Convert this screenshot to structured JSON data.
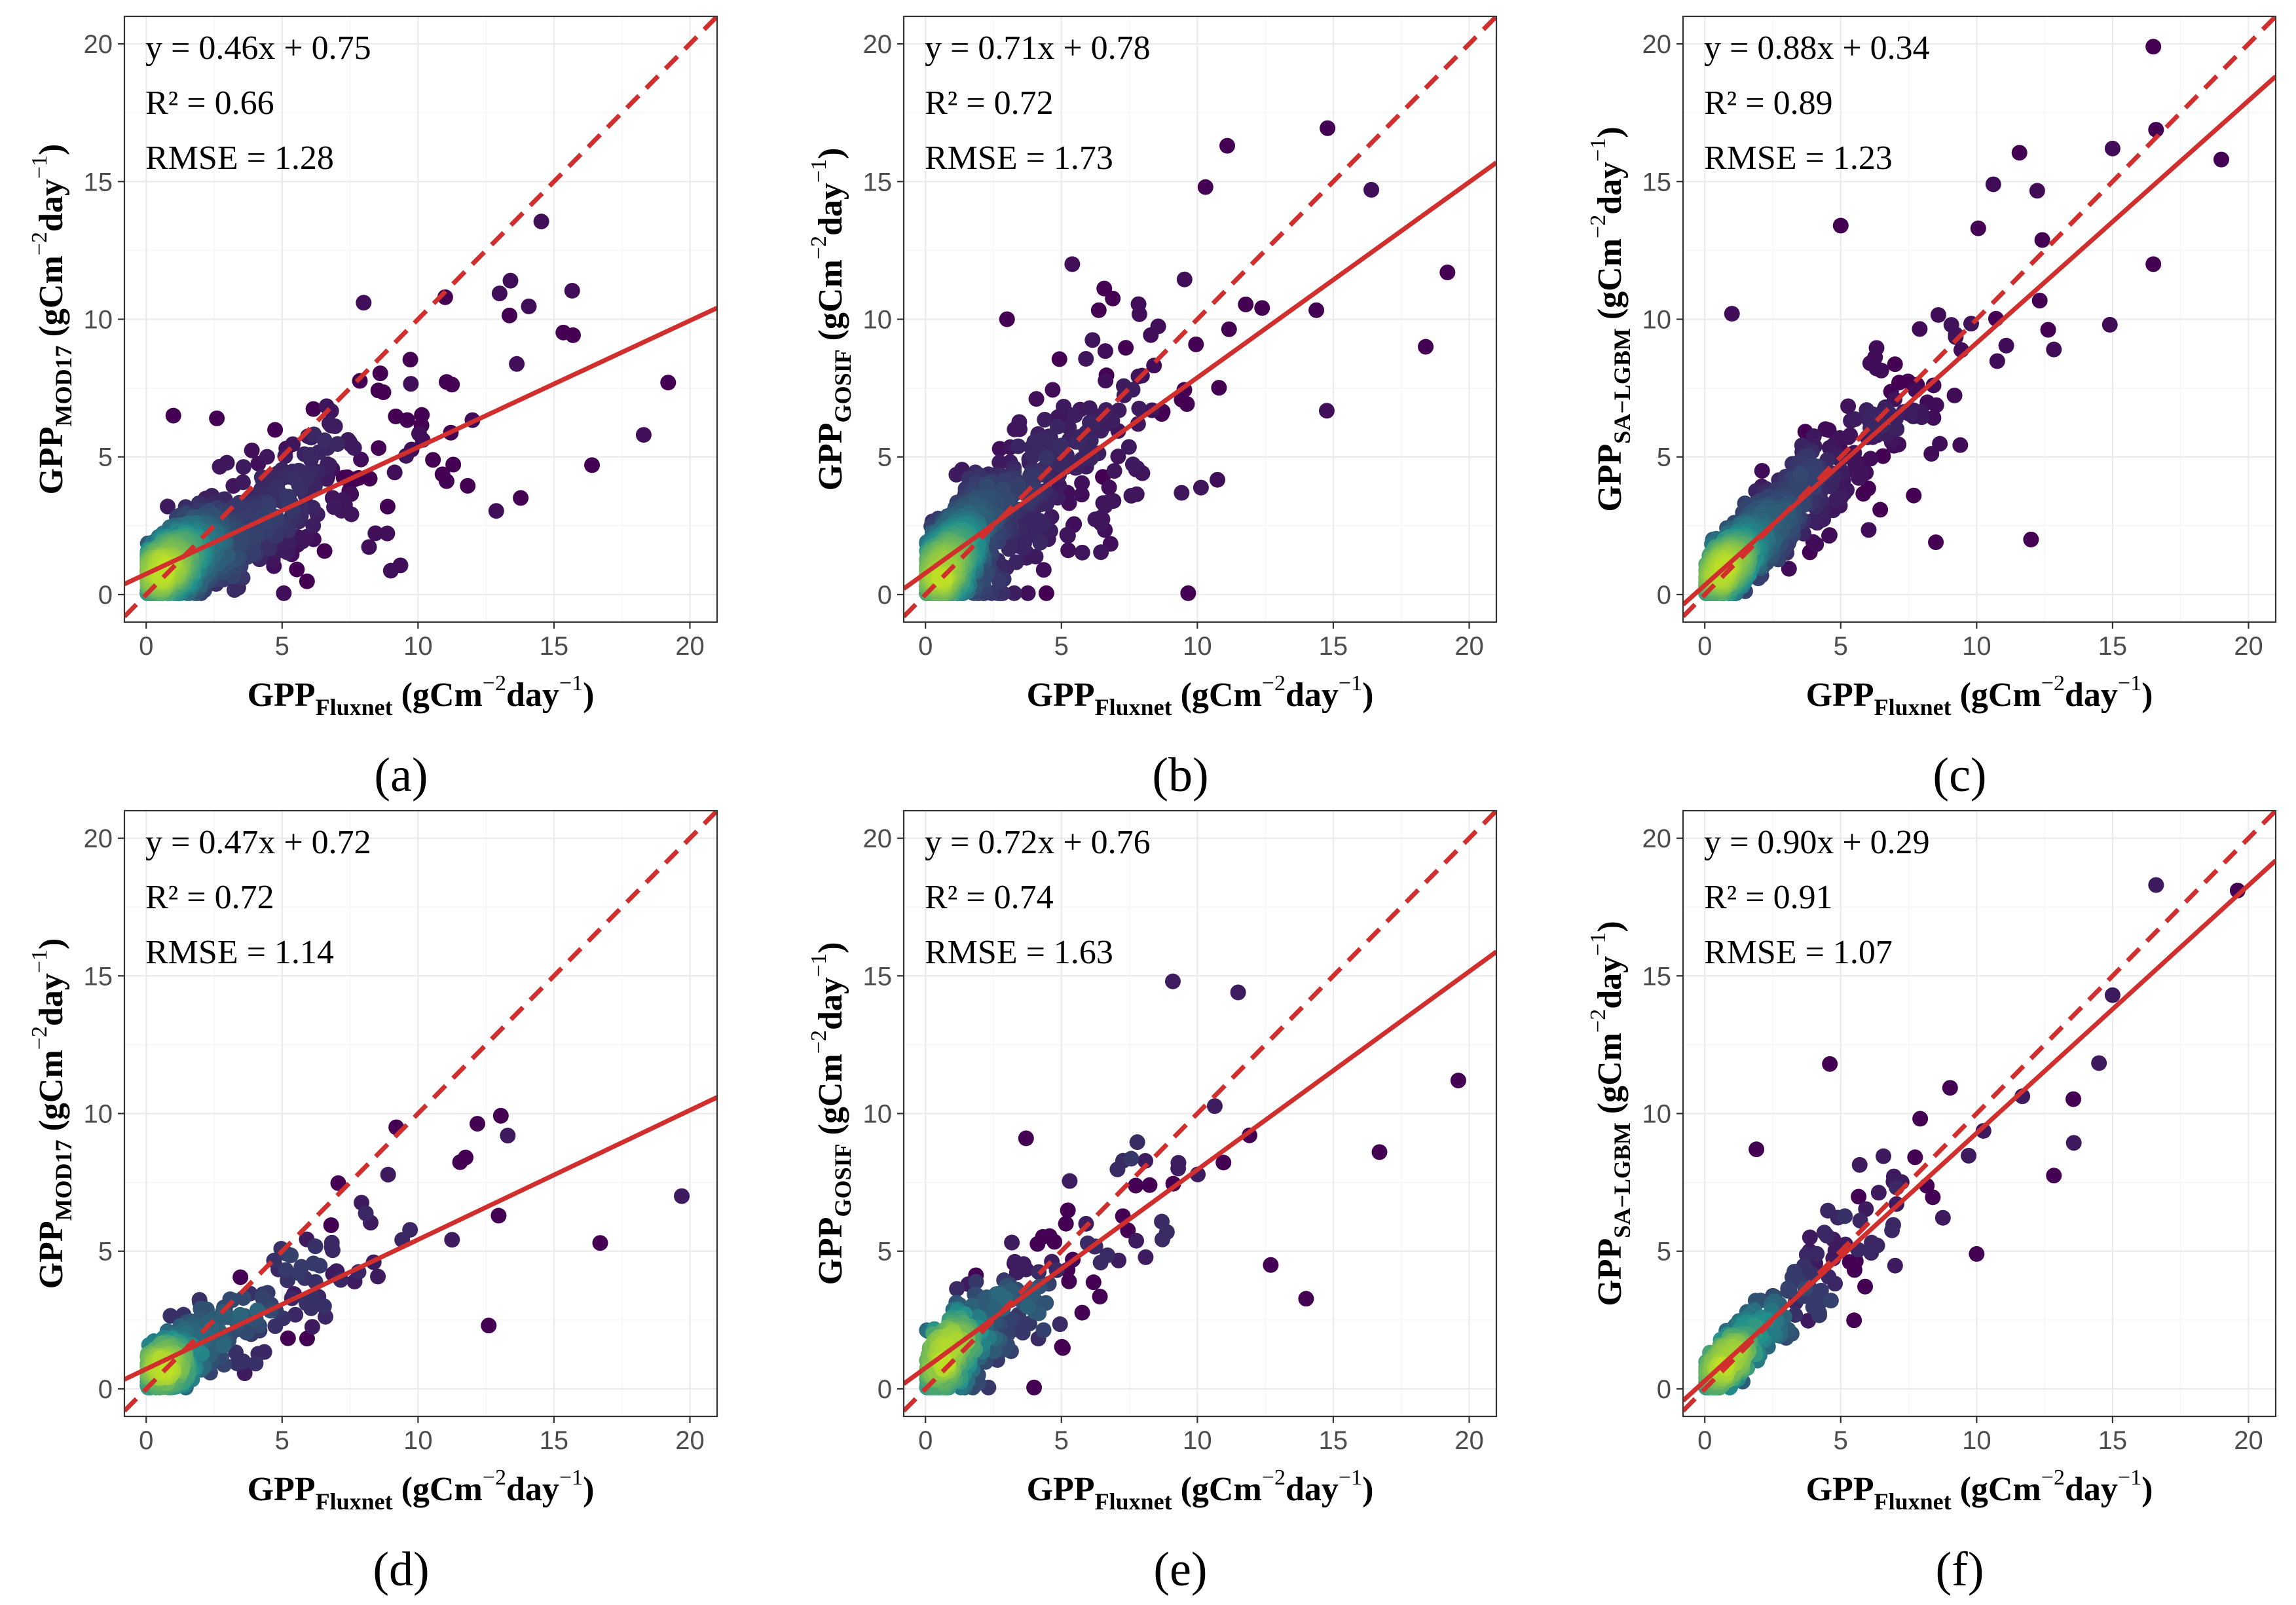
{
  "figure": {
    "line_color": "#d12e2e",
    "point_color_low": "#440154",
    "point_color_mid": "#21908c",
    "point_color_high": "#bddf26"
  },
  "chart_data": [
    {
      "id": "a",
      "type": "scatter",
      "panel_label": "(a)",
      "x_label": {
        "base": "GPP",
        "sub": "Fluxnet",
        "unit_a": " (gCm",
        "exp1": "−2",
        "unit_b": "day",
        "exp2": "−1",
        "unit_c": ")"
      },
      "y_label": {
        "base": "GPP",
        "sub": "MOD17",
        "unit_a": " (gCm",
        "exp1": "−2",
        "unit_b": "day",
        "exp2": "−1",
        "unit_c": ")"
      },
      "xlim": [
        -0.8,
        21
      ],
      "ylim": [
        -1,
        21
      ],
      "x_ticks": [
        0,
        5,
        10,
        15,
        20
      ],
      "y_ticks": [
        0,
        5,
        10,
        15,
        20
      ],
      "regression": {
        "slope": 0.46,
        "intercept": 0.75
      },
      "stats": {
        "equation": "y = 0.46x + 0.75",
        "r2": "R² = 0.66",
        "rmse": "RMSE = 1.28"
      },
      "sample": {
        "n": 1300,
        "seed": 11,
        "max_x": 19.2,
        "noise": 1.3,
        "outliers": [
          [
            19.2,
            7.7
          ],
          [
            16.4,
            4.7
          ],
          [
            18.3,
            5.8
          ],
          [
            13.4,
            11.4
          ],
          [
            11.0,
            10.8
          ],
          [
            8.0,
            10.6
          ],
          [
            2.6,
            6.4
          ],
          [
            1.0,
            6.5
          ]
        ]
      }
    },
    {
      "id": "b",
      "type": "scatter",
      "panel_label": "(b)",
      "x_label": {
        "base": "GPP",
        "sub": "Fluxnet",
        "unit_a": " (gCm",
        "exp1": "−2",
        "unit_b": "day",
        "exp2": "−1",
        "unit_c": ")"
      },
      "y_label": {
        "base": "GPP",
        "sub": "GOSIF",
        "unit_a": " (gCm",
        "exp1": "−2",
        "unit_b": "day",
        "exp2": "−1",
        "unit_c": ")"
      },
      "xlim": [
        -0.8,
        21
      ],
      "ylim": [
        -1,
        21
      ],
      "x_ticks": [
        0,
        5,
        10,
        15,
        20
      ],
      "y_ticks": [
        0,
        5,
        10,
        15,
        20
      ],
      "regression": {
        "slope": 0.71,
        "intercept": 0.78
      },
      "stats": {
        "equation": "y = 0.71x + 0.78",
        "r2": "R² = 0.72",
        "rmse": "RMSE = 1.73"
      },
      "sample": {
        "n": 1300,
        "seed": 23,
        "max_x": 19.2,
        "noise": 1.75,
        "outliers": [
          [
            11.1,
            16.3
          ],
          [
            10.3,
            14.8
          ],
          [
            16.4,
            14.7
          ],
          [
            19.2,
            11.7
          ],
          [
            18.4,
            9.0
          ],
          [
            5.4,
            12.0
          ],
          [
            3.0,
            10.0
          ]
        ]
      }
    },
    {
      "id": "c",
      "type": "scatter",
      "panel_label": "(c)",
      "x_label": {
        "base": "GPP",
        "sub": "Fluxnet",
        "unit_a": " (gCm",
        "exp1": "−2",
        "unit_b": "day",
        "exp2": "−1",
        "unit_c": ")"
      },
      "y_label": {
        "base": "GPP",
        "sub": "SA−LGBM",
        "unit_a": " (gCm",
        "exp1": "−2",
        "unit_b": "day",
        "exp2": "−1",
        "unit_c": ")"
      },
      "xlim": [
        -0.8,
        21
      ],
      "ylim": [
        -1,
        21
      ],
      "x_ticks": [
        0,
        5,
        10,
        15,
        20
      ],
      "y_ticks": [
        0,
        5,
        10,
        15,
        20
      ],
      "regression": {
        "slope": 0.88,
        "intercept": 0.34
      },
      "stats": {
        "equation": "y = 0.88x + 0.34",
        "r2": "R² = 0.89",
        "rmse": "RMSE = 1.23"
      },
      "sample": {
        "n": 1300,
        "seed": 37,
        "max_x": 19.0,
        "noise": 1.2,
        "outliers": [
          [
            16.5,
            19.9
          ],
          [
            19.0,
            15.8
          ],
          [
            15.0,
            16.2
          ],
          [
            16.5,
            12.0
          ],
          [
            12.0,
            2.0
          ],
          [
            1.0,
            10.2
          ],
          [
            5.0,
            13.4
          ],
          [
            8.5,
            1.9
          ],
          [
            14.9,
            9.8
          ]
        ]
      }
    },
    {
      "id": "d",
      "type": "scatter",
      "panel_label": "(d)",
      "x_label": {
        "base": "GPP",
        "sub": "Fluxnet",
        "unit_a": " (gCm",
        "exp1": "−2",
        "unit_b": "day",
        "exp2": "−1",
        "unit_c": ")"
      },
      "y_label": {
        "base": "GPP",
        "sub": "MOD17",
        "unit_a": " (gCm",
        "exp1": "−2",
        "unit_b": "day",
        "exp2": "−1",
        "unit_c": ")"
      },
      "xlim": [
        -0.8,
        21
      ],
      "ylim": [
        -1,
        21
      ],
      "x_ticks": [
        0,
        5,
        10,
        15,
        20
      ],
      "y_ticks": [
        0,
        5,
        10,
        15,
        20
      ],
      "regression": {
        "slope": 0.47,
        "intercept": 0.72
      },
      "stats": {
        "equation": "y = 0.47x + 0.72",
        "r2": "R² = 0.72",
        "rmse": "RMSE = 1.14"
      },
      "sample": {
        "n": 420,
        "seed": 41,
        "max_x": 14.5,
        "noise": 1.15,
        "outliers": [
          [
            19.7,
            7.0
          ],
          [
            16.7,
            5.3
          ],
          [
            9.2,
            9.5
          ],
          [
            13.3,
            9.2
          ],
          [
            12.6,
            2.3
          ]
        ]
      }
    },
    {
      "id": "e",
      "type": "scatter",
      "panel_label": "(e)",
      "x_label": {
        "base": "GPP",
        "sub": "Fluxnet",
        "unit_a": " (gCm",
        "exp1": "−2",
        "unit_b": "day",
        "exp2": "−1",
        "unit_c": ")"
      },
      "y_label": {
        "base": "GPP",
        "sub": "GOSIF",
        "unit_a": " (gCm",
        "exp1": "−2",
        "unit_b": "day",
        "exp2": "−1",
        "unit_c": ")"
      },
      "xlim": [
        -0.8,
        21
      ],
      "ylim": [
        -1,
        21
      ],
      "x_ticks": [
        0,
        5,
        10,
        15,
        20
      ],
      "y_ticks": [
        0,
        5,
        10,
        15,
        20
      ],
      "regression": {
        "slope": 0.72,
        "intercept": 0.76
      },
      "stats": {
        "equation": "y = 0.72x + 0.76",
        "r2": "R² = 0.74",
        "rmse": "RMSE = 1.63"
      },
      "sample": {
        "n": 420,
        "seed": 53,
        "max_x": 14.0,
        "noise": 1.6,
        "outliers": [
          [
            9.1,
            14.8
          ],
          [
            19.6,
            11.2
          ],
          [
            16.7,
            8.6
          ],
          [
            11.5,
            14.4
          ],
          [
            3.7,
            9.1
          ],
          [
            12.7,
            4.5
          ]
        ]
      }
    },
    {
      "id": "f",
      "type": "scatter",
      "panel_label": "(f)",
      "x_label": {
        "base": "GPP",
        "sub": "Fluxnet",
        "unit_a": " (gCm",
        "exp1": "−2",
        "unit_b": "day",
        "exp2": "−1",
        "unit_c": ")"
      },
      "y_label": {
        "base": "GPP",
        "sub": "SA−LGBM",
        "unit_a": " (gCm",
        "exp1": "−2",
        "unit_b": "day",
        "exp2": "−1",
        "unit_c": ")"
      },
      "xlim": [
        -0.8,
        21
      ],
      "ylim": [
        -1,
        21
      ],
      "x_ticks": [
        0,
        5,
        10,
        15,
        20
      ],
      "y_ticks": [
        0,
        5,
        10,
        15,
        20
      ],
      "regression": {
        "slope": 0.9,
        "intercept": 0.29
      },
      "stats": {
        "equation": "y = 0.90x + 0.29",
        "r2": "R² = 0.91",
        "rmse": "RMSE = 1.07"
      },
      "sample": {
        "n": 420,
        "seed": 67,
        "max_x": 14.5,
        "noise": 1.0,
        "outliers": [
          [
            16.6,
            18.3
          ],
          [
            19.6,
            18.1
          ],
          [
            4.6,
            11.8
          ],
          [
            15.0,
            14.3
          ],
          [
            1.9,
            8.7
          ],
          [
            10.0,
            4.9
          ]
        ]
      }
    }
  ]
}
